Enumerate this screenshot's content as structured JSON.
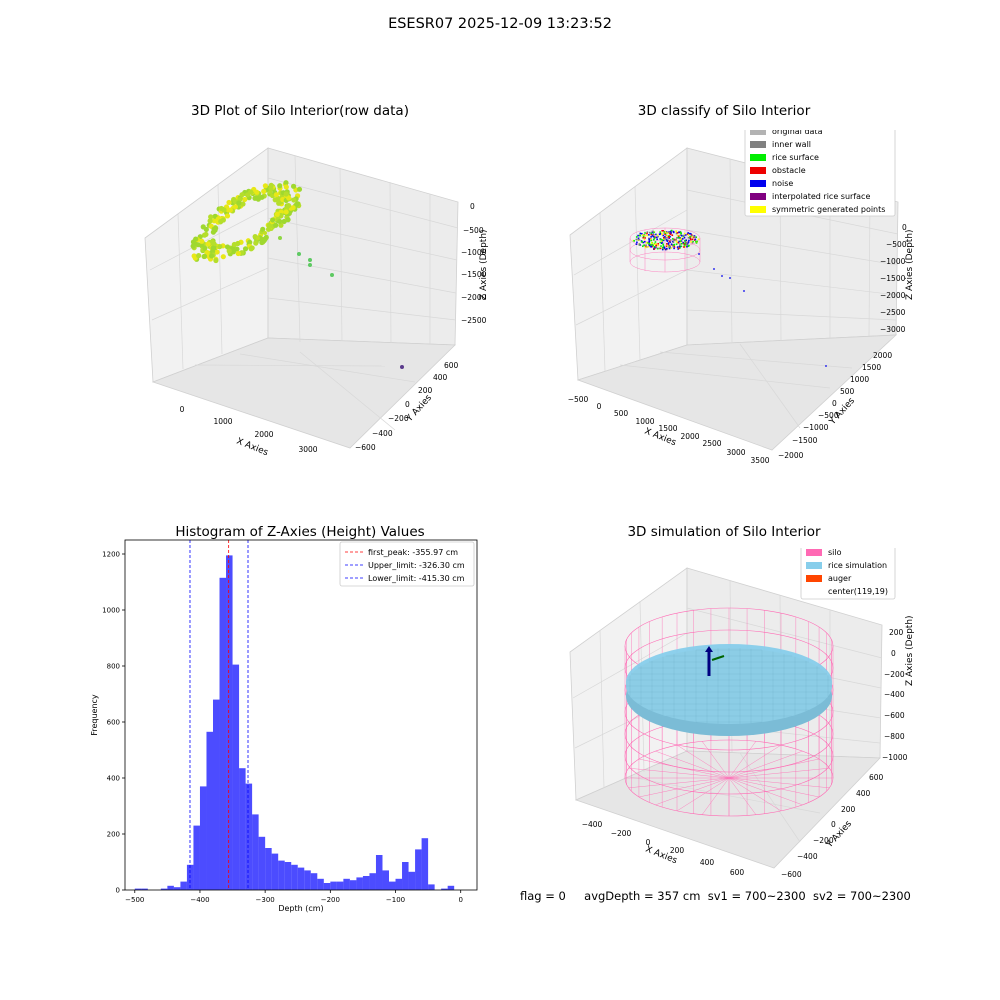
{
  "figure": {
    "title": "ESESR07 2025-12-09 13:23:52"
  },
  "panels": {
    "p1": {
      "title": "3D Plot of Silo Interior(row data)",
      "xlabel": "X Axies",
      "ylabel": "Y Axies",
      "zlabel": "Z Axies (Depth)",
      "xticks": [
        "0",
        "1000",
        "2000",
        "3000"
      ],
      "yticks": [
        "600",
        "400",
        "200",
        "0",
        "−200",
        "−400",
        "−600"
      ],
      "zticks": [
        "0",
        "−500",
        "−1000",
        "−1500",
        "−2000",
        "−2500"
      ]
    },
    "p2": {
      "title": "3D classify of Silo Interior",
      "xlabel": "X Axies",
      "ylabel": "Y Axies",
      "zlabel": "Z Axies (Depth)",
      "xticks": [
        "−500",
        "0",
        "500",
        "1000",
        "1500",
        "2000",
        "2500",
        "3000",
        "3500"
      ],
      "yticks": [
        "2000",
        "1500",
        "1000",
        "500",
        "0",
        "−500",
        "−1000",
        "−1500",
        "−2000"
      ],
      "zticks": [
        "0",
        "−500",
        "−1000",
        "−1500",
        "−2000",
        "−2500",
        "−3000"
      ],
      "legend": [
        {
          "label": "original data",
          "color": "#b3b3b3"
        },
        {
          "label": "inner wall",
          "color": "#808080"
        },
        {
          "label": "rice surface",
          "color": "#00ee00"
        },
        {
          "label": "obstacle",
          "color": "#ee0000"
        },
        {
          "label": "noise",
          "color": "#0000ee"
        },
        {
          "label": "interpolated rice surface",
          "color": "#800080"
        },
        {
          "label": "symmetric generated points",
          "color": "#ffff00"
        }
      ]
    },
    "p4": {
      "title": "3D simulation of Silo Interior",
      "xlabel": "X Axies",
      "ylabel": "Y Axies",
      "zlabel": "Z Axies (Depth)",
      "xticks": [
        "−400",
        "−200",
        "0",
        "200",
        "400",
        "600"
      ],
      "yticks": [
        "600",
        "400",
        "200",
        "0",
        "−200",
        "−400",
        "−600"
      ],
      "zticks": [
        "200",
        "0",
        "−200",
        "−400",
        "−600",
        "−800",
        "−1000"
      ],
      "legend": [
        {
          "label": "silo",
          "color": "#ff69b4"
        },
        {
          "label": "rice simulation",
          "color": "#87ceeb"
        },
        {
          "label": "auger",
          "color": "#ff4500"
        },
        {
          "label": "center(119,19)",
          "color": ""
        }
      ]
    }
  },
  "chart_data": {
    "type": "bar",
    "title": "Histogram of Z-Axies (Height) Values",
    "xlabel": "Depth (cm)",
    "ylabel": "Frequency",
    "xlim": [
      -515,
      25
    ],
    "ylim": [
      0,
      1250
    ],
    "xticks": [
      -500,
      -400,
      -300,
      -200,
      -100,
      0
    ],
    "yticks": [
      0,
      200,
      400,
      600,
      800,
      1000,
      1200
    ],
    "bin_start": -500,
    "bin_width": 10,
    "values": [
      5,
      5,
      0,
      0,
      5,
      15,
      10,
      30,
      90,
      230,
      370,
      565,
      680,
      1115,
      1195,
      805,
      435,
      380,
      270,
      190,
      150,
      130,
      105,
      100,
      90,
      80,
      70,
      60,
      40,
      25,
      30,
      30,
      40,
      35,
      45,
      50,
      60,
      125,
      70,
      30,
      40,
      100,
      65,
      145,
      185,
      20,
      0,
      5,
      15
    ],
    "color": "#0000ff",
    "vlines": [
      {
        "x": -355.97,
        "color": "#ff0000",
        "label": "first_peak: -355.97 cm"
      },
      {
        "x": -326.3,
        "color": "#0000ff",
        "label": "Upper_limit: -326.30 cm"
      },
      {
        "x": -415.3,
        "color": "#0000ff",
        "label": "Lower_limit: -415.30 cm"
      }
    ],
    "legend_position": "upper right",
    "grid": false
  },
  "footer": {
    "flag": "flag = 0",
    "avg_depth": "avgDepth = 357 cm",
    "sv1": "sv1 = 700~2300",
    "sv2": "sv2 = 700~2300"
  }
}
